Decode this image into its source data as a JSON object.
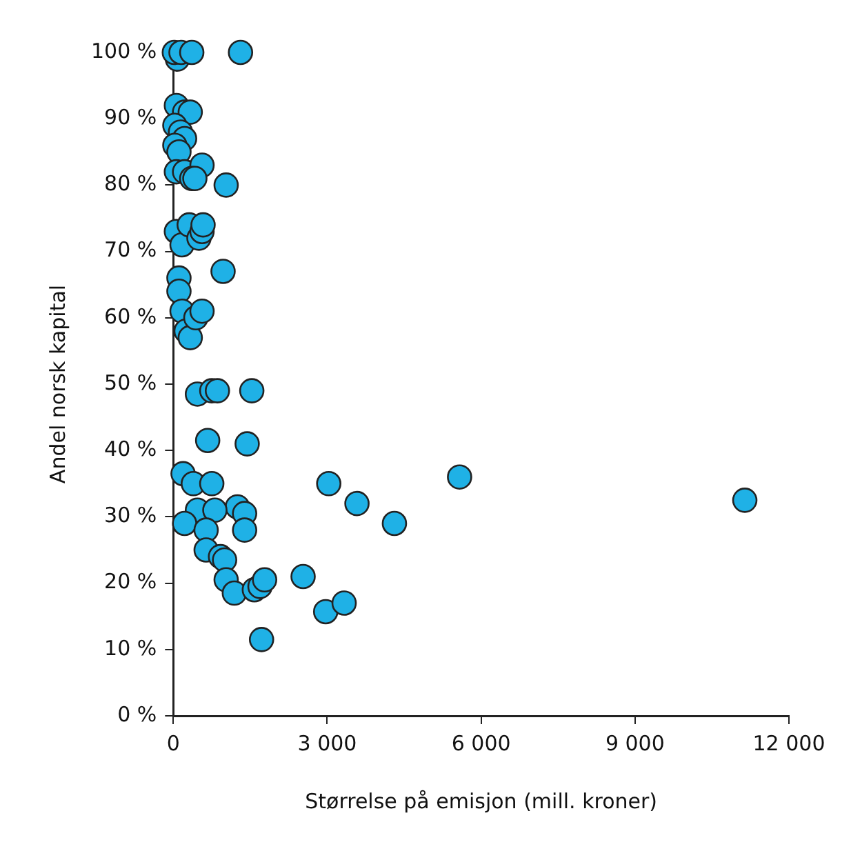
{
  "chart_data": {
    "type": "scatter",
    "xlabel": "Størrelse på emisjon (mill. kroner)",
    "ylabel": "Andel norsk kapital",
    "x": [
      80,
      20,
      150,
      360,
      1310,
      60,
      220,
      330,
      30,
      140,
      220,
      30,
      110,
      60,
      220,
      560,
      360,
      420,
      1030,
      60,
      170,
      310,
      500,
      560,
      580,
      970,
      110,
      110,
      170,
      250,
      330,
      440,
      560,
      470,
      750,
      860,
      1530,
      670,
      1440,
      190,
      390,
      750,
      3030,
      5580,
      3580,
      4310,
      11140,
      1250,
      1390,
      470,
      810,
      220,
      640,
      1390,
      640,
      920,
      1000,
      1030,
      1190,
      1580,
      1690,
      1780,
      2530,
      2970,
      3330,
      1720
    ],
    "values": [
      99,
      100,
      100,
      100,
      100,
      92,
      91,
      91,
      89,
      88,
      87,
      86,
      85,
      82,
      82,
      83,
      81,
      81,
      80,
      73,
      71,
      74,
      72,
      73,
      74,
      67,
      66,
      64,
      61,
      58,
      57,
      60,
      61,
      48.5,
      49,
      49,
      49,
      41.5,
      41,
      36.5,
      35,
      35,
      35,
      36,
      32,
      29,
      32.5,
      31.5,
      30.5,
      31,
      31,
      29,
      28,
      28,
      25,
      24,
      23.5,
      20.5,
      18.5,
      19,
      19.5,
      20.5,
      21,
      15.7,
      17,
      11.5
    ],
    "color": "#1fb1e6",
    "marker": "circle",
    "xlim": [
      0,
      12000
    ],
    "xticks": [
      0,
      {
        "value": 3000,
        "label": "3 000"
      },
      {
        "value": 6000,
        "label": "6 000"
      },
      {
        "value": 9000,
        "label": "9 000"
      },
      {
        "value": 12000,
        "label": "12 000"
      }
    ],
    "ylim": [
      0,
      100
    ],
    "yticks": [
      {
        "value": 0,
        "label": "0 %"
      },
      {
        "value": 10,
        "label": "10 %"
      },
      {
        "value": 20,
        "label": "20 %"
      },
      {
        "value": 30,
        "label": "30 %"
      },
      {
        "value": 40,
        "label": "40 %"
      },
      {
        "value": 50,
        "label": "50 %"
      },
      {
        "value": 60,
        "label": "60 %"
      },
      {
        "value": 70,
        "label": "70 %"
      },
      {
        "value": 80,
        "label": "80 %"
      },
      {
        "value": 90,
        "label": "90 %"
      },
      {
        "value": 100,
        "label": "100 %"
      }
    ],
    "grid": false,
    "legend": false
  }
}
